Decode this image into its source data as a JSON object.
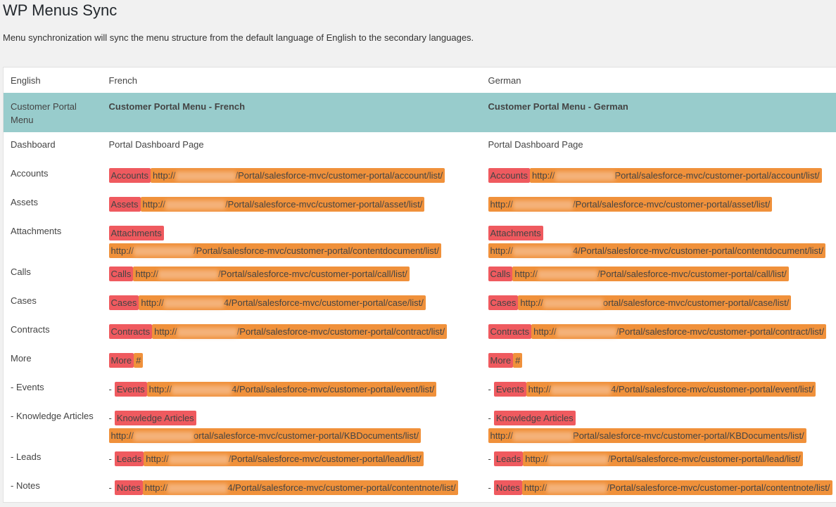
{
  "header": {
    "title": "WP Menus Sync",
    "description": "Menu synchronization will sync the menu structure from the default language of English to the secondary languages."
  },
  "table": {
    "columns": [
      "English",
      "French",
      "German"
    ],
    "group": {
      "english": "Customer Portal Menu",
      "french": "Customer Portal Menu - French",
      "german": "Customer Portal Menu - German"
    },
    "rows": [
      {
        "english": "Dashboard",
        "french": {
          "text": "Portal Dashboard Page"
        },
        "german": {
          "text": "Portal Dashboard Page"
        }
      },
      {
        "english": "Accounts",
        "french": {
          "tag": "Accounts",
          "url_start": "http://",
          "url_end": "/Portal/salesforce-mvc/customer-portal/account/list/"
        },
        "german": {
          "tag": "Accounts",
          "url_start": "http://",
          "url_end": "Portal/salesforce-mvc/customer-portal/account/list/"
        }
      },
      {
        "english": "Assets",
        "french": {
          "tag": "Assets",
          "url_start": "http://",
          "url_end": "/Portal/salesforce-mvc/customer-portal/asset/list/"
        },
        "german": {
          "url_start": "http://",
          "url_end": "/Portal/salesforce-mvc/customer-portal/asset/list/"
        }
      },
      {
        "english": "Attachments",
        "french": {
          "tag": "Attachments",
          "url_start": "http://",
          "url_end": "/Portal/salesforce-mvc/customer-portal/contentdocument/list/"
        },
        "german": {
          "tag": "Attachments",
          "url_start": "http://",
          "url_end": "4/Portal/salesforce-mvc/customer-portal/contentdocument/list/"
        }
      },
      {
        "english": "Calls",
        "french": {
          "tag": "Calls",
          "url_start": "http://",
          "url_end": "/Portal/salesforce-mvc/customer-portal/call/list/"
        },
        "german": {
          "tag": "Calls",
          "url_start": "http://",
          "url_end": "/Portal/salesforce-mvc/customer-portal/call/list/"
        }
      },
      {
        "english": "Cases",
        "french": {
          "tag": "Cases",
          "url_start": "http://",
          "url_end": "4/Portal/salesforce-mvc/customer-portal/case/list/"
        },
        "german": {
          "tag": "Cases",
          "url_start": "http://",
          "url_end": "ortal/salesforce-mvc/customer-portal/case/list/"
        }
      },
      {
        "english": "Contracts",
        "french": {
          "tag": "Contracts",
          "url_start": "http://",
          "url_end": "/Portal/salesforce-mvc/customer-portal/contract/list/"
        },
        "german": {
          "tag": "Contracts",
          "url_start": "http://",
          "url_end": "/Portal/salesforce-mvc/customer-portal/contract/list/"
        }
      },
      {
        "english": "More",
        "french": {
          "tag": "More",
          "url": "#"
        },
        "german": {
          "tag": "More",
          "url": "#"
        }
      },
      {
        "english": "- Events",
        "french": {
          "prefix": "-",
          "tag": "Events",
          "url_start": "http://",
          "url_end": "4/Portal/salesforce-mvc/customer-portal/event/list/"
        },
        "german": {
          "prefix": "-",
          "tag": "Events",
          "url_start": "http://",
          "url_end": "4/Portal/salesforce-mvc/customer-portal/event/list/"
        }
      },
      {
        "english": "- Knowledge Articles",
        "french": {
          "prefix": "-",
          "tag": "Knowledge Articles",
          "url_start": "http://",
          "url_end": "ortal/salesforce-mvc/customer-portal/KBDocuments/list/"
        },
        "german": {
          "prefix": "-",
          "tag": "Knowledge Articles",
          "url_start": "http://",
          "url_end": "Portal/salesforce-mvc/customer-portal/KBDocuments/list/"
        }
      },
      {
        "english": "- Leads",
        "french": {
          "prefix": "-",
          "tag": "Leads",
          "url_start": "http://",
          "url_end": "/Portal/salesforce-mvc/customer-portal/lead/list/"
        },
        "german": {
          "prefix": "-",
          "tag": "Leads",
          "url_start": "http://",
          "url_end": "/Portal/salesforce-mvc/customer-portal/lead/list/"
        }
      },
      {
        "english": "- Notes",
        "french": {
          "prefix": "-",
          "tag": "Notes",
          "url_start": "http://",
          "url_end": "4/Portal/salesforce-mvc/customer-portal/contentnote/list/"
        },
        "german": {
          "prefix": "-",
          "tag": "Notes",
          "url_start": "http://",
          "url_end": "/Portal/salesforce-mvc/customer-portal/contentnote/list/"
        }
      }
    ]
  }
}
